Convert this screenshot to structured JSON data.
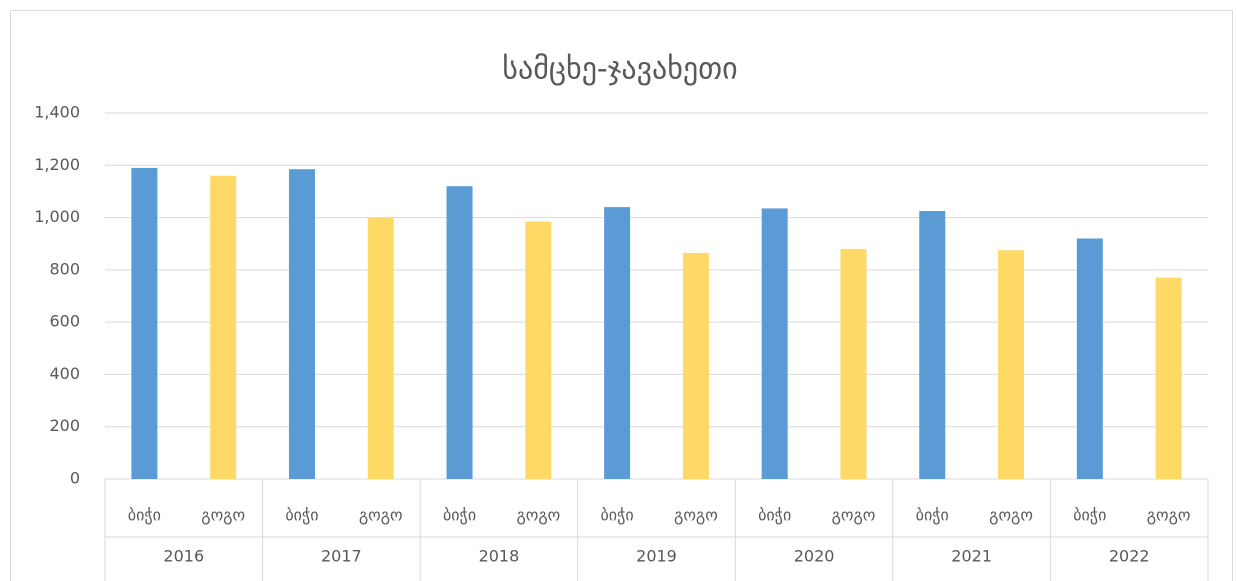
{
  "chart_data": {
    "type": "bar",
    "title": "სამცხე-ჯავახეთი",
    "categories": [
      "2016",
      "2017",
      "2018",
      "2019",
      "2020",
      "2021",
      "2022"
    ],
    "series": [
      {
        "name": "ბიჭი",
        "color": "#5b9bd5",
        "values": [
          1190,
          1185,
          1120,
          1040,
          1035,
          1025,
          920
        ]
      },
      {
        "name": "გოგო",
        "color": "#ffd966",
        "values": [
          1160,
          1000,
          985,
          865,
          880,
          875,
          770
        ]
      }
    ],
    "ylim": [
      0,
      1400
    ],
    "yticks": [
      0,
      200,
      400,
      600,
      800,
      {
        "value": 1000,
        "label": "1,000"
      },
      {
        "value": 1200,
        "label": "1,200"
      },
      {
        "value": 1400,
        "label": "1,400"
      }
    ],
    "grid": true
  }
}
